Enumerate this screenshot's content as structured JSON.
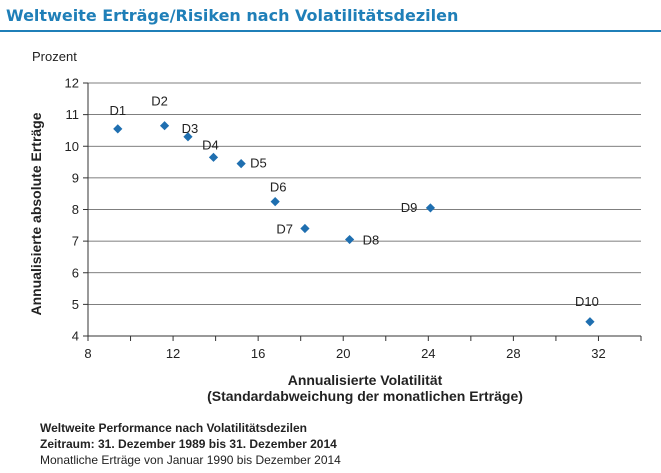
{
  "title": "Weltweite Erträge/Risiken nach Volatilitätsdezilen",
  "chart_data": {
    "type": "scatter",
    "title": "Weltweite Erträge/Risiken nach Volatilitätsdezilen",
    "unit_label": "Prozent",
    "xlabel_line1": "Annualisierte Volatilität",
    "xlabel_line2": "(Standardabweichung der monatlichen Erträge)",
    "ylabel": "Annualisierte absolute Erträge",
    "xlim": [
      8,
      34
    ],
    "ylim": [
      4,
      12
    ],
    "x_ticks": [
      8,
      12,
      16,
      20,
      24,
      28,
      32
    ],
    "y_ticks": [
      4,
      5,
      6,
      7,
      8,
      9,
      10,
      11,
      12
    ],
    "grid": "horizontal",
    "marker_color": "#1f6fb0",
    "points": [
      {
        "label": "D1",
        "x": 9.4,
        "y": 10.55
      },
      {
        "label": "D2",
        "x": 11.6,
        "y": 10.65
      },
      {
        "label": "D3",
        "x": 12.7,
        "y": 10.3
      },
      {
        "label": "D4",
        "x": 13.9,
        "y": 9.65
      },
      {
        "label": "D5",
        "x": 15.2,
        "y": 9.45
      },
      {
        "label": "D6",
        "x": 16.8,
        "y": 8.25
      },
      {
        "label": "D7",
        "x": 18.2,
        "y": 7.4
      },
      {
        "label": "D8",
        "x": 20.3,
        "y": 7.05
      },
      {
        "label": "D9",
        "x": 24.1,
        "y": 8.05
      },
      {
        "label": "D10",
        "x": 31.6,
        "y": 4.45
      }
    ]
  },
  "footer": {
    "line1": "Weltweite Performance nach Volatilitätsdezilen",
    "line2": "Zeitraum: 31. Dezember 1989 bis 31. Dezember 2014",
    "line3": "Monatliche Erträge von Januar 1990 bis Dezember 2014"
  }
}
